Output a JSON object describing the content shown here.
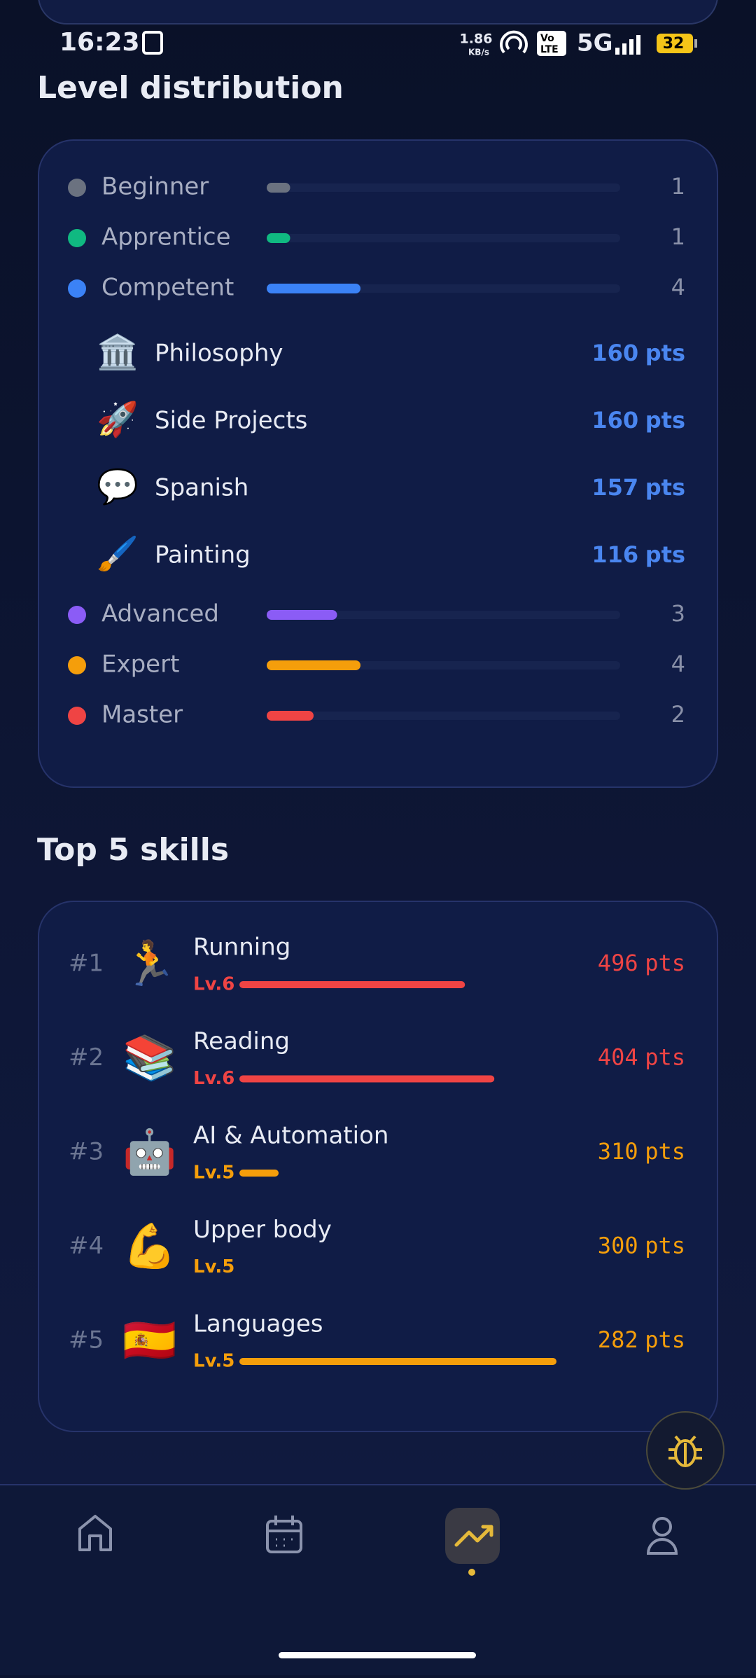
{
  "status": {
    "time": "16:23",
    "speed": "1.86",
    "speed_unit": "KB/s",
    "volte_top": "Vo",
    "volte_bottom": "LTE",
    "network": "5G",
    "battery": "32"
  },
  "level_distribution": {
    "title": "Level distribution",
    "levels": [
      {
        "name": "Beginner",
        "color": "#6b7280",
        "count": 1
      },
      {
        "name": "Apprentice",
        "color": "#10b981",
        "count": 1
      },
      {
        "name": "Competent",
        "color": "#3b82f6",
        "count": 4,
        "skills": [
          {
            "icon": "🏛️",
            "name": "Philosophy",
            "points": 160,
            "unit": "pts"
          },
          {
            "icon": "🚀",
            "name": "Side Projects",
            "points": 160,
            "unit": "pts"
          },
          {
            "icon": "💬",
            "name": "Spanish",
            "points": 157,
            "unit": "pts"
          },
          {
            "icon": "🖌️",
            "name": "Painting",
            "points": 116,
            "unit": "pts"
          }
        ]
      },
      {
        "name": "Advanced",
        "color": "#8b5cf6",
        "count": 3
      },
      {
        "name": "Expert",
        "color": "#f59e0b",
        "count": 4
      },
      {
        "name": "Master",
        "color": "#ef4444",
        "count": 2
      }
    ]
  },
  "top_skills": {
    "title": "Top 5 skills",
    "items": [
      {
        "rank": "#1",
        "icon": "🏃",
        "name": "Running",
        "level": "Lv.6",
        "progress": 69,
        "points": 496,
        "unit": "pts",
        "color": "#ef4444"
      },
      {
        "rank": "#2",
        "icon": "📚",
        "name": "Reading",
        "level": "Lv.6",
        "progress": 78,
        "points": 404,
        "unit": "pts",
        "color": "#ef4444"
      },
      {
        "rank": "#3",
        "icon": "🤖",
        "name": "AI & Automation",
        "level": "Lv.5",
        "progress": 12,
        "points": 310,
        "unit": "pts",
        "color": "#f59e0b"
      },
      {
        "rank": "#4",
        "icon": "💪",
        "name": "Upper body",
        "level": "Lv.5",
        "progress": 0,
        "points": 300,
        "unit": "pts",
        "color": "#f59e0b"
      },
      {
        "rank": "#5",
        "icon": "🇪🇸",
        "name": "Languages",
        "level": "Lv.5",
        "progress": 97,
        "points": 282,
        "unit": "pts",
        "color": "#f59e0b"
      }
    ]
  }
}
